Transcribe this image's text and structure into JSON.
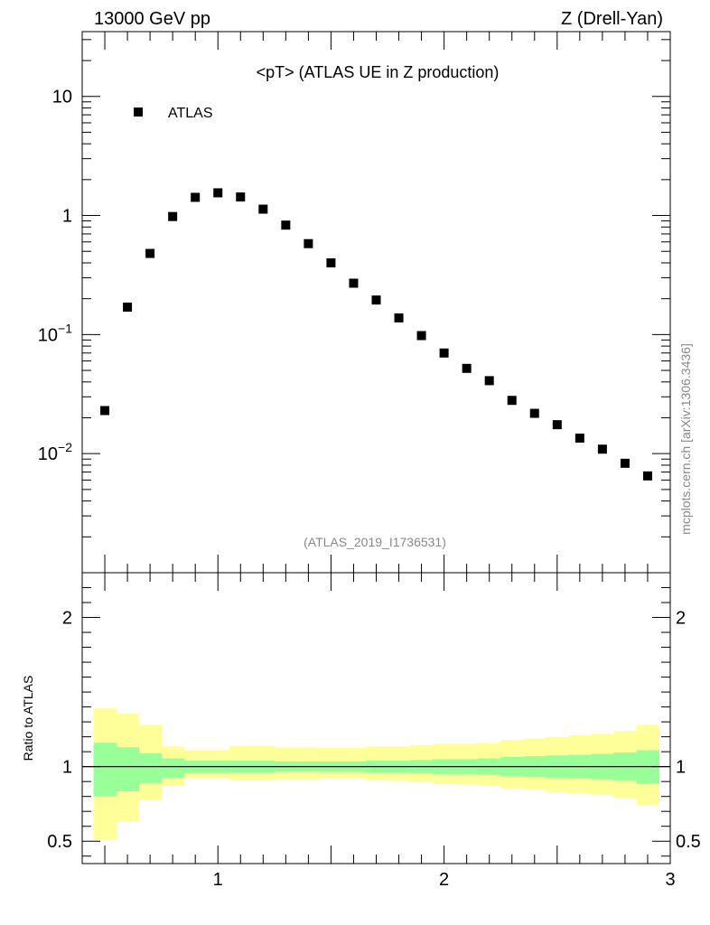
{
  "header": {
    "left": "13000 GeV pp",
    "right": "Z (Drell-Yan)"
  },
  "plot_title": "<pT> (ATLAS UE in Z production)",
  "analysis_id": "(ATLAS_2019_I1736531)",
  "watermark": "mcplots.cern.ch [arXiv:1306.3436]",
  "legend": {
    "label": "ATLAS",
    "position": "top-left"
  },
  "ratio_ylabel": "Ratio to ATLAS",
  "colors": {
    "marker": "#000000",
    "band_inner": "#99ff99",
    "band_outer": "#ffff99",
    "watermark": "#888888"
  },
  "chart_data": [
    {
      "type": "scatter",
      "panel": "main",
      "title": "<pT> (ATLAS UE in Z production)",
      "xlabel": "",
      "ylabel": "",
      "yscale": "log",
      "xlim": [
        0.4,
        3.0
      ],
      "ylim": [
        0.001,
        35
      ],
      "x": [
        0.5,
        0.6,
        0.7,
        0.8,
        0.9,
        1.0,
        1.1,
        1.2,
        1.3,
        1.4,
        1.5,
        1.6,
        1.7,
        1.8,
        1.9,
        2.0,
        2.1,
        2.2,
        2.3,
        2.4,
        2.5,
        2.6,
        2.7,
        2.8,
        2.9
      ],
      "y": [
        0.023,
        0.17,
        0.48,
        0.98,
        1.42,
        1.55,
        1.43,
        1.13,
        0.83,
        0.58,
        0.4,
        0.27,
        0.195,
        0.138,
        0.098,
        0.07,
        0.052,
        0.041,
        0.028,
        0.0218,
        0.0175,
        0.0135,
        0.0109,
        0.0083,
        0.0065
      ],
      "series_name": "ATLAS",
      "y_ticks": [
        {
          "value": 10,
          "label": "10"
        },
        {
          "value": 1,
          "label": "1"
        },
        {
          "value": 0.1,
          "base": "10",
          "exp": "−1"
        },
        {
          "value": 0.01,
          "base": "10",
          "exp": "−2"
        }
      ]
    },
    {
      "type": "area",
      "panel": "ratio",
      "ylabel": "Ratio to ATLAS",
      "xlim": [
        0.4,
        3.0
      ],
      "ylim": [
        0.35,
        2.3
      ],
      "reference_line": 1,
      "bin_edges": [
        0.45,
        0.55,
        0.65,
        0.75,
        0.85,
        0.95,
        1.05,
        1.15,
        1.25,
        1.35,
        1.45,
        1.55,
        1.65,
        1.75,
        1.85,
        1.95,
        2.05,
        2.15,
        2.25,
        2.35,
        2.45,
        2.55,
        2.65,
        2.75,
        2.85,
        2.95
      ],
      "band_inner": {
        "lower": [
          0.8,
          0.835,
          0.89,
          0.925,
          0.955,
          0.955,
          0.96,
          0.96,
          0.965,
          0.965,
          0.965,
          0.965,
          0.96,
          0.96,
          0.955,
          0.95,
          0.95,
          0.945,
          0.935,
          0.93,
          0.925,
          0.92,
          0.915,
          0.905,
          0.885
        ],
        "upper": [
          1.16,
          1.13,
          1.09,
          1.055,
          1.04,
          1.04,
          1.04,
          1.04,
          1.035,
          1.035,
          1.035,
          1.035,
          1.04,
          1.04,
          1.045,
          1.05,
          1.05,
          1.055,
          1.065,
          1.07,
          1.075,
          1.08,
          1.085,
          1.095,
          1.11
        ]
      },
      "band_outer": {
        "lower": [
          0.51,
          0.635,
          0.775,
          0.87,
          0.925,
          0.925,
          0.91,
          0.91,
          0.915,
          0.915,
          0.92,
          0.92,
          0.91,
          0.905,
          0.895,
          0.885,
          0.88,
          0.875,
          0.855,
          0.845,
          0.83,
          0.82,
          0.81,
          0.79,
          0.745
        ],
        "upper": [
          1.39,
          1.355,
          1.28,
          1.135,
          1.11,
          1.11,
          1.14,
          1.14,
          1.13,
          1.13,
          1.125,
          1.125,
          1.135,
          1.135,
          1.145,
          1.155,
          1.155,
          1.16,
          1.18,
          1.19,
          1.2,
          1.21,
          1.22,
          1.24,
          1.28
        ]
      },
      "y_ticks": [
        {
          "value": 2,
          "label": "2"
        },
        {
          "value": 1,
          "label": "1"
        },
        {
          "value": 0.5,
          "label": "0.5"
        }
      ],
      "x_ticks": [
        {
          "value": 1,
          "label": "1"
        },
        {
          "value": 2,
          "label": "2"
        },
        {
          "value": 3,
          "label": "3"
        }
      ]
    }
  ]
}
